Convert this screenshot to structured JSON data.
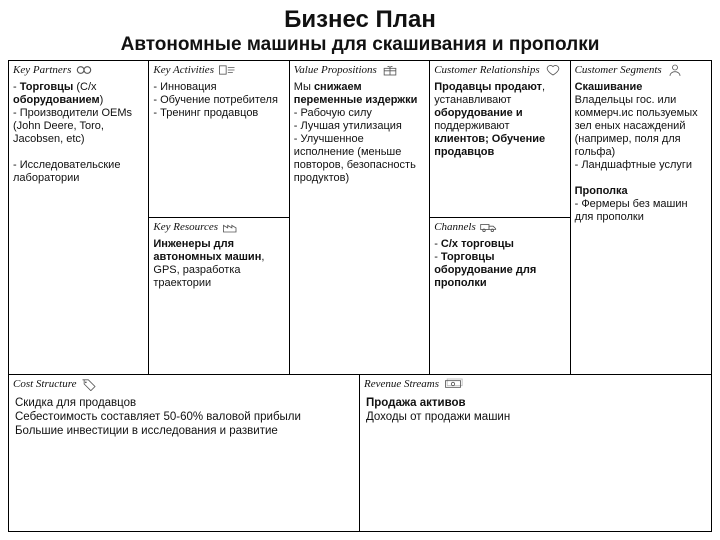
{
  "title": "Бизнес План",
  "subtitle": "Автономные машины для скашивания и прополки",
  "colors": {
    "border": "#000000",
    "bg": "#ffffff",
    "text": "#111111",
    "icon": "#555555"
  },
  "layout": {
    "cols": 5,
    "header_font": "Times New Roman italic",
    "body_font": "Arial",
    "header_fontsize": 11,
    "body_fontsize": 11
  },
  "headers": {
    "kp": "Key Partners",
    "ka": "Key Activities",
    "vp": "Value Propositions",
    "cr": "Customer Relationships",
    "cs": "Customer Segments",
    "kr": "Key Resources",
    "ch": "Channels",
    "cost": "Cost Structure",
    "rev": "Revenue Streams"
  },
  "content": {
    "kp": "- <b>Торговцы</b> (С/х <b>оборудованием</b>)\n- Производители OEMs (John Deere, Toro, Jacobsen, etc)\n\n- Исследовательские лаборатории",
    "ka": "- Инновация\n- Обучение потребителя\n- Тренинг продавцов",
    "kr": "<b>Инженеры для автономных машин</b>, GPS, разработка траектории",
    "vp": "Мы <b>снижаем переменные издержки</b>\n- Рабочую силу\n- Лучшая утилизация\n- Улучшенное исполнение (меньше повторов, безопасность продуктов)",
    "cr": "<b>Продавцы продают</b>, устанавливают <b>оборудование и</b> поддерживают <b>клиентов; Обучение продавцов</b>",
    "ch": "- <b>С/х торговцы</b>\n- <b>Торговцы оборудование для прополки</b>",
    "cs": "<b>Скашивание</b>\nВладельцы гос. или коммерч.ис пользуемых зел еных насаждений (например, поля для гольфа)\n- Ландшафтные услуги\n\n<b>Прополка</b>\n- Фермеры без машин для прополки",
    "cost": "Скидка для продавцов\nСебестоимость составляет 50-60% валовой прибыли\nБольшие инвестиции в исследования и развитие",
    "rev": "<b>Продажа активов</b>\nДоходы от продажи машин"
  }
}
